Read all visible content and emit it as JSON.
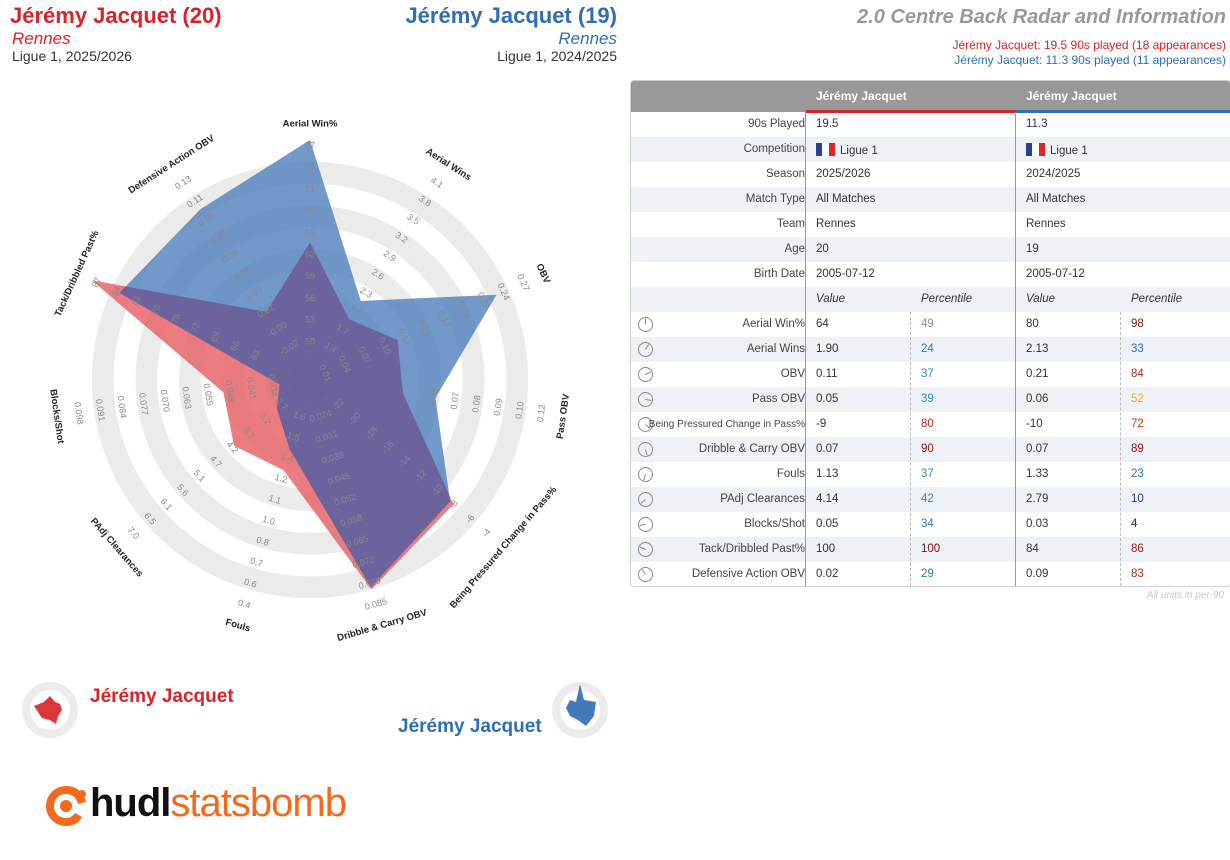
{
  "header": {
    "player1_name": "Jérémy Jacquet (20)",
    "player1_team": "Rennes",
    "player1_competition": "Ligue 1, 2025/2026",
    "player2_name": "Jérémy Jacquet (19)",
    "player2_team": "Rennes",
    "player2_competition": "Ligue 1, 2024/2025",
    "title": "2.0 Centre Back Radar and Information",
    "subtitle1": "Jérémy Jacquet: 19.5 90s played (18 appearances)",
    "subtitle2": "Jérémy Jacquet: 11.3 90s played (11 appearances)"
  },
  "colors": {
    "player1": "#d8232a",
    "player2": "#2f6db5",
    "player1_fill": "#e8666b",
    "player2_fill": "#4f7fbd",
    "overlap": "#6b5f9a",
    "ring": "#ebebeb",
    "logo": "#f26b1d"
  },
  "legend": {
    "player1": "Jérémy Jacquet",
    "player2": "Jérémy Jacquet"
  },
  "chart_data": {
    "type": "radar",
    "axes": [
      {
        "label": "Aerial Win%",
        "ticks": [
          "50",
          "53",
          "56",
          "59",
          "62",
          "65",
          "68",
          "71",
          "74",
          "77"
        ],
        "p1": 64,
        "p2": 80
      },
      {
        "label": "Aerial Wins",
        "ticks": [
          "1.4",
          "1.7",
          "2.0",
          "2.3",
          "2.6",
          "2.9",
          "3.2",
          "3.5",
          "3.8",
          "4.1"
        ],
        "p1": 1.9,
        "p2": 2.13
      },
      {
        "label": "OBV",
        "ticks": [
          "0.01",
          "0.04",
          "0.07",
          "0.10",
          "0.12",
          "0.15",
          "0.17",
          "0.20",
          "0.22",
          "0.24",
          "0.27"
        ],
        "p1": 0.11,
        "p2": 0.21
      },
      {
        "label": "Pass OBV",
        "ticks": [
          "0.06",
          "0.07",
          "0.08",
          "0.09",
          "0.10",
          "0.12"
        ],
        "p1": 0.05,
        "p2": 0.06
      },
      {
        "label": "Being Pressured Change in Pass%",
        "ticks": [
          "-22",
          "-20",
          "-18",
          "-16",
          "-14",
          "-12",
          "-10",
          "-8",
          "-6",
          "-4"
        ],
        "p1": -9,
        "p2": -10
      },
      {
        "label": "Dribble & Carry OBV",
        "ticks": [
          "0.024",
          "0.031",
          "0.038",
          "0.045",
          "0.052",
          "0.058",
          "0.065",
          "0.072",
          "0.079",
          "0.085"
        ],
        "p1": 0.07,
        "p2": 0.07
      },
      {
        "label": "Fouls",
        "ticks": [
          "1.6",
          "1.5",
          "1.4",
          "1.2",
          "1.1",
          "1.0",
          "0.8",
          "0.7",
          "0.6",
          "0.4"
        ],
        "p1": 1.13,
        "p2": 1.33
      },
      {
        "label": "PAdj Clearances",
        "ticks": [
          "2.7",
          "3.2",
          "3.7",
          "4.2",
          "4.7",
          "5.1",
          "5.6",
          "6.1",
          "6.5",
          "7.0"
        ],
        "p1": 4.14,
        "p2": 2.79
      },
      {
        "label": "Blocks/Shot",
        "ticks": [
          "0.034",
          "0.041",
          "0.048",
          "0.055",
          "0.063",
          "0.070",
          "0.077",
          "0.084",
          "0.091",
          "0.098"
        ],
        "p1": 0.05,
        "p2": 0.03
      },
      {
        "label": "Tack/Dribbled Past%",
        "ticks": [
          "63",
          "66",
          "69",
          "72",
          "75",
          "78",
          "81",
          "84",
          "87"
        ],
        "p1": 100,
        "p2": 84
      },
      {
        "label": "Defensive Action OBV",
        "ticks": [
          "-0.02",
          "-0.00",
          "0.02",
          "0.03",
          "0.05",
          "0.06",
          "0.08",
          "0.09",
          "0.11",
          "0.13"
        ],
        "p1": 0.02,
        "p2": 0.09
      }
    ],
    "series": [
      {
        "name": "Jérémy Jacquet",
        "season": "2025/2026",
        "radius_pct": [
          53,
          23,
          34,
          33,
          77,
          90,
          33,
          36,
          30,
          100,
          27
        ]
      },
      {
        "name": "Jérémy Jacquet",
        "season": "2024/2025",
        "radius_pct": [
          100,
          33,
          84,
          48,
          75,
          89,
          23,
          10,
          4,
          86,
          83
        ]
      }
    ]
  },
  "table": {
    "col_player1": "Jérémy Jacquet",
    "col_player2": "Jérémy Jacquet",
    "info": [
      {
        "label": "90s Played",
        "p1": "19.5",
        "p2": "11.3"
      },
      {
        "label": "Competition",
        "p1": "Ligue 1",
        "p2": "Ligue 1",
        "flag": true
      },
      {
        "label": "Season",
        "p1": "2025/2026",
        "p2": "2024/2025"
      },
      {
        "label": "Match Type",
        "p1": "All Matches",
        "p2": "All Matches"
      },
      {
        "label": "Team",
        "p1": "Rennes",
        "p2": "Rennes"
      },
      {
        "label": "Age",
        "p1": "20",
        "p2": "19"
      },
      {
        "label": "Birth Date",
        "p1": "2005-07-12",
        "p2": "2005-07-12"
      }
    ],
    "subheader": {
      "value": "Value",
      "percentile": "Percentile"
    },
    "metrics": [
      {
        "label": "Aerial Win%",
        "v1": "64",
        "p1": "49",
        "c1": "#7aa56a",
        "v2": "80",
        "p2": "98",
        "c2": "#8b1010"
      },
      {
        "label": "Aerial Wins",
        "v1": "1.90",
        "p1": "24",
        "c1": "#2f7fa8",
        "v2": "2.13",
        "p2": "33",
        "c2": "#2f6db5"
      },
      {
        "label": "OBV",
        "v1": "0.11",
        "p1": "37",
        "c1": "#2f8fa8",
        "v2": "0.21",
        "p2": "84",
        "c2": "#b32a1a"
      },
      {
        "label": "Pass OBV",
        "v1": "0.05",
        "p1": "39",
        "c1": "#2f8fa8",
        "v2": "0.06",
        "p2": "52",
        "c2": "#e0b020"
      },
      {
        "label": "Being Pressured Change in Pass%",
        "v1": "-9",
        "p1": "80",
        "c1": "#b32a1a",
        "v2": "-10",
        "p2": "72",
        "c2": "#c0391b"
      },
      {
        "label": "Dribble & Carry OBV",
        "v1": "0.07",
        "p1": "90",
        "c1": "#8b1010",
        "v2": "0.07",
        "p2": "89",
        "c2": "#8b1010"
      },
      {
        "label": "Fouls",
        "v1": "1.13",
        "p1": "37",
        "c1": "#2f8fa8",
        "v2": "1.33",
        "p2": "23",
        "c2": "#2f6db5"
      },
      {
        "label": "PAdj Clearances",
        "v1": "4.14",
        "p1": "42",
        "c1": "#2f8fa8",
        "v2": "2.79",
        "p2": "10",
        "c2": "#1a3f8a"
      },
      {
        "label": "Blocks/Shot",
        "v1": "0.05",
        "p1": "34",
        "c1": "#2f7fa8",
        "v2": "0.03",
        "p2": "4",
        "c2": "#1a2f7a"
      },
      {
        "label": "Tack/Dribbled Past%",
        "v1": "100",
        "p1": "100",
        "c1": "#7a0a0a",
        "v2": "84",
        "p2": "86",
        "c2": "#9a1a10"
      },
      {
        "label": "Defensive Action OBV",
        "v1": "0.02",
        "p1": "29",
        "c1": "#2f7fa8",
        "v2": "0.09",
        "p2": "83",
        "c2": "#b32a1a"
      }
    ],
    "footnote": "All units in per-90"
  },
  "logo": {
    "text_bold": "hudl",
    "text_light": "statsbomb"
  }
}
